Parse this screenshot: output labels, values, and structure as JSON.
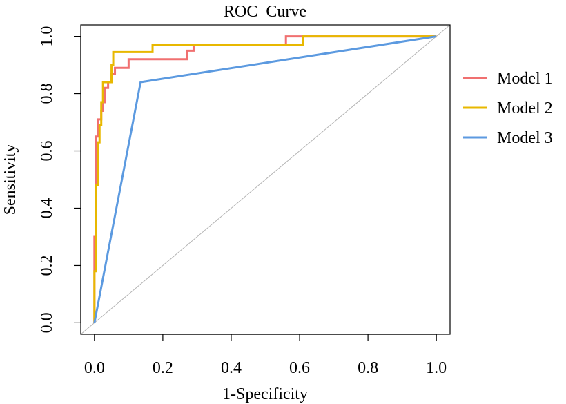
{
  "chart_data": {
    "type": "line",
    "title": "ROC  Curve",
    "xlabel": "1-Specificity",
    "ylabel": "Sensitivity",
    "xlim": [
      -0.04,
      1.04
    ],
    "ylim": [
      -0.04,
      1.04
    ],
    "xticks": [
      0.0,
      0.2,
      0.4,
      0.6,
      0.8,
      1.0
    ],
    "xtick_labels": [
      "0.0",
      "0.2",
      "0.4",
      "0.6",
      "0.8",
      "1.0"
    ],
    "yticks": [
      0.0,
      0.2,
      0.4,
      0.6,
      0.8,
      1.0
    ],
    "ytick_labels": [
      "0.0",
      "0.2",
      "0.4",
      "0.6",
      "0.8",
      "1.0"
    ],
    "reference_line": {
      "from": [
        -0.04,
        -0.04
      ],
      "to": [
        1.04,
        1.04
      ],
      "color": "#b3b3b3"
    },
    "legend_position": "right",
    "series": [
      {
        "name": "Model 1",
        "color": "#f07070",
        "points": [
          [
            0,
            0
          ],
          [
            0,
            0.3
          ],
          [
            0.005,
            0.3
          ],
          [
            0.005,
            0.65
          ],
          [
            0.01,
            0.65
          ],
          [
            0.01,
            0.71
          ],
          [
            0.02,
            0.71
          ],
          [
            0.02,
            0.74
          ],
          [
            0.025,
            0.74
          ],
          [
            0.025,
            0.77
          ],
          [
            0.03,
            0.77
          ],
          [
            0.03,
            0.82
          ],
          [
            0.04,
            0.82
          ],
          [
            0.04,
            0.84
          ],
          [
            0.05,
            0.84
          ],
          [
            0.05,
            0.87
          ],
          [
            0.06,
            0.87
          ],
          [
            0.06,
            0.89
          ],
          [
            0.1,
            0.89
          ],
          [
            0.1,
            0.92
          ],
          [
            0.27,
            0.92
          ],
          [
            0.27,
            0.95
          ],
          [
            0.29,
            0.95
          ],
          [
            0.29,
            0.97
          ],
          [
            0.56,
            0.97
          ],
          [
            0.56,
            1.0
          ],
          [
            1.0,
            1.0
          ]
        ]
      },
      {
        "name": "Model 2",
        "color": "#e8b800",
        "points": [
          [
            0,
            0
          ],
          [
            0,
            0.18
          ],
          [
            0.005,
            0.18
          ],
          [
            0.005,
            0.48
          ],
          [
            0.01,
            0.48
          ],
          [
            0.01,
            0.63
          ],
          [
            0.015,
            0.63
          ],
          [
            0.015,
            0.69
          ],
          [
            0.02,
            0.69
          ],
          [
            0.02,
            0.77
          ],
          [
            0.025,
            0.77
          ],
          [
            0.025,
            0.84
          ],
          [
            0.05,
            0.84
          ],
          [
            0.05,
            0.9
          ],
          [
            0.055,
            0.9
          ],
          [
            0.055,
            0.945
          ],
          [
            0.17,
            0.945
          ],
          [
            0.17,
            0.97
          ],
          [
            0.61,
            0.97
          ],
          [
            0.61,
            1.0
          ],
          [
            1.0,
            1.0
          ]
        ]
      },
      {
        "name": "Model 3",
        "color": "#5c9ae0",
        "points": [
          [
            0,
            0
          ],
          [
            0.135,
            0.84
          ],
          [
            1.0,
            1.0
          ]
        ]
      }
    ]
  }
}
